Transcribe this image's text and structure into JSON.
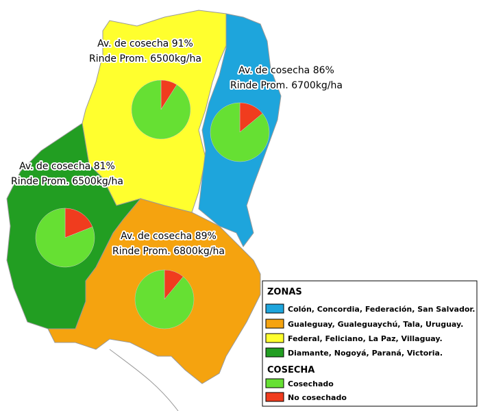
{
  "zones": [
    {
      "line1": "Av. de cosecha 91%",
      "line2": "Rinde Prom. 6500kg/ha",
      "harvested": 91,
      "not_harvested": 9
    },
    {
      "line1": "Av. de cosecha 86%",
      "line2": "Rinde Prom. 6700kg/ha",
      "harvested": 86,
      "not_harvested": 14
    },
    {
      "line1": "Av. de cosecha 81%",
      "line2": "Rinde Prom. 6500kg/ha",
      "harvested": 81,
      "not_harvested": 19
    },
    {
      "line1": "Av. de cosecha 89%",
      "line2": "Rinde Prom. 6800kg/ha",
      "harvested": 89,
      "not_harvested": 11
    }
  ],
  "legend": {
    "zones_title": "ZONAS",
    "zones": [
      {
        "label": "Colón, Concordia, Federación, San Salvador.",
        "color": "#1ea5dc"
      },
      {
        "label": "Gualeguay, Gualeguaychú, Tala, Uruguay.",
        "color": "#f5a30f"
      },
      {
        "label": "Federal, Feliciano, La Paz, Villaguay.",
        "color": "#ffff2e"
      },
      {
        "label": "Diamante, Nogoyá, Paraná, Victoria.",
        "color": "#229e22"
      }
    ],
    "harvest_title": "COSECHA",
    "harvest": [
      {
        "label": "Cosechado",
        "color": "#66e033"
      },
      {
        "label": "No cosechado",
        "color": "#f03c1e"
      }
    ]
  }
}
